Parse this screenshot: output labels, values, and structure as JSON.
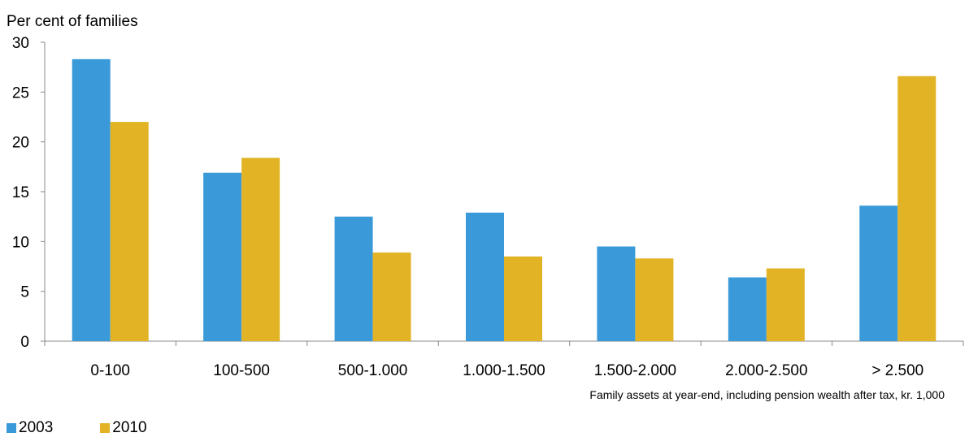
{
  "chart_data": {
    "type": "bar",
    "ylabel": "Per cent of families",
    "xlabel": "Family assets at year-end, including pension wealth after tax, kr. 1,000",
    "categories": [
      "0-100",
      "100-500",
      "500-1.000",
      "1.000-1.500",
      "1.500-2.000",
      "2.000-2.500",
      "> 2.500"
    ],
    "series": [
      {
        "name": "2003",
        "color": "#3a9ad9",
        "values": [
          28.3,
          16.9,
          12.5,
          12.9,
          9.5,
          6.4,
          13.6
        ]
      },
      {
        "name": "2010",
        "color": "#e2b325",
        "values": [
          22.0,
          18.4,
          8.9,
          8.5,
          8.3,
          7.3,
          26.6
        ]
      }
    ],
    "ylim": [
      0,
      30
    ],
    "yticks": [
      0,
      5,
      10,
      15,
      20,
      25,
      30
    ],
    "grid": false,
    "legend_position": "bottom-left"
  }
}
